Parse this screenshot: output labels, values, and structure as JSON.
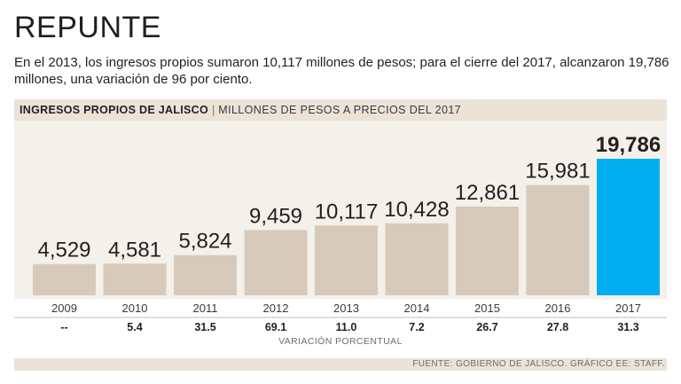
{
  "title": "REPUNTE",
  "subtitle": "En el 2013, los ingresos propios sumaron 10,117 millones de pesos; para el cierre del 2017, alcanzaron 19,786 millones, una variación de 96 por ciento.",
  "header": {
    "title": "INGRESOS PROPIOS DE JALISCO",
    "separator": "|",
    "unit": "MILLONES DE PESOS A PRECIOS DEL 2017"
  },
  "variation_label": "VARIACIÓN PORCENTUAL",
  "source": "FUENTE: GOBIERNO DE JALISCO. GRÁFICO EE: STAFF.",
  "colors": {
    "bar": "#d7cabb",
    "highlight": "#00aeef",
    "band": "#ebe3d8",
    "plot_bg": "#f4f0ea",
    "text": "#231f20"
  },
  "chart_data": {
    "type": "bar",
    "title": "INGRESOS PROPIOS DE JALISCO",
    "ylabel": "MILLONES DE PESOS A PRECIOS DEL 2017",
    "xlabel": "",
    "categories": [
      "2009",
      "2010",
      "2011",
      "2012",
      "2013",
      "2014",
      "2015",
      "2016",
      "2017"
    ],
    "values": [
      4529,
      4581,
      5824,
      9459,
      10117,
      10428,
      12861,
      15981,
      19786
    ],
    "value_labels": [
      "4,529",
      "4,581",
      "5,824",
      "9,459",
      "10,117",
      "10,428",
      "12,861",
      "15,981",
      "19,786"
    ],
    "variation": [
      "--",
      "5.4",
      "31.5",
      "69.1",
      "11.0",
      "7.2",
      "26.7",
      "27.8",
      "31.3"
    ],
    "variation_label": "VARIACIÓN PORCENTUAL",
    "highlight_index": 8,
    "ylim": [
      0,
      20000
    ],
    "grid": false
  }
}
